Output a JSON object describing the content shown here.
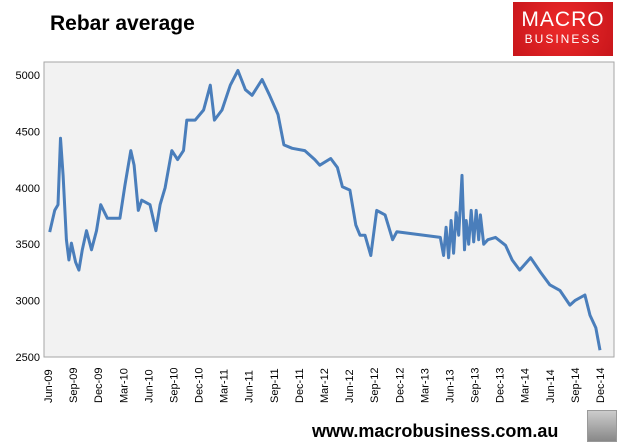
{
  "header": {
    "title": "Rebar average",
    "logo_line1": "MACRO",
    "logo_line2": "BUSINESS"
  },
  "footer": {
    "url": "www.macrobusiness.com.au"
  },
  "chart_data": {
    "type": "line",
    "title": "Rebar average",
    "xlabel": "",
    "ylabel": "",
    "ylim": [
      2500,
      5000
    ],
    "yticks": [
      2500,
      3000,
      3500,
      4000,
      4500,
      5000
    ],
    "x_unit": "months since Jun-09",
    "xlim": [
      0,
      66
    ],
    "xtick_labels": [
      "Jun-09",
      "Sep-09",
      "Dec-09",
      "Mar-10",
      "Jun-10",
      "Sep-10",
      "Dec-10",
      "Mar-11",
      "Jun-11",
      "Sep-11",
      "Dec-11",
      "Mar-12",
      "Jun-12",
      "Sep-12",
      "Dec-12",
      "Mar-13",
      "Jun-13",
      "Sep-13",
      "Dec-13",
      "Mar-14",
      "Jun-14",
      "Sep-14",
      "Dec-14"
    ],
    "grid": false,
    "color": "#4a7ebb",
    "series": [
      {
        "name": "Rebar average",
        "points": [
          [
            0.2,
            3607
          ],
          [
            0.8,
            3800
          ],
          [
            1.2,
            3850
          ],
          [
            1.5,
            4440
          ],
          [
            1.8,
            4110
          ],
          [
            2.2,
            3540
          ],
          [
            2.5,
            3360
          ],
          [
            2.8,
            3510
          ],
          [
            3.3,
            3340
          ],
          [
            3.7,
            3270
          ],
          [
            4.1,
            3450
          ],
          [
            4.6,
            3620
          ],
          [
            5.2,
            3450
          ],
          [
            5.8,
            3620
          ],
          [
            6.3,
            3850
          ],
          [
            7.1,
            3730
          ],
          [
            8.6,
            3730
          ],
          [
            9.2,
            4020
          ],
          [
            9.9,
            4330
          ],
          [
            10.3,
            4200
          ],
          [
            10.8,
            3800
          ],
          [
            11.2,
            3890
          ],
          [
            12.2,
            3850
          ],
          [
            12.9,
            3620
          ],
          [
            13.4,
            3850
          ],
          [
            14.0,
            4000
          ],
          [
            14.8,
            4330
          ],
          [
            15.5,
            4250
          ],
          [
            16.2,
            4330
          ],
          [
            16.6,
            4600
          ],
          [
            17.6,
            4600
          ],
          [
            18.6,
            4690
          ],
          [
            19.4,
            4910
          ],
          [
            19.9,
            4600
          ],
          [
            20.8,
            4690
          ],
          [
            21.8,
            4910
          ],
          [
            22.7,
            5040
          ],
          [
            23.6,
            4870
          ],
          [
            24.4,
            4820
          ],
          [
            25.6,
            4960
          ],
          [
            26.5,
            4820
          ],
          [
            27.5,
            4650
          ],
          [
            28.2,
            4380
          ],
          [
            29.2,
            4350
          ],
          [
            30.7,
            4330
          ],
          [
            31.9,
            4250
          ],
          [
            32.5,
            4200
          ],
          [
            33.8,
            4260
          ],
          [
            34.6,
            4180
          ],
          [
            35.2,
            4010
          ],
          [
            36.1,
            3980
          ],
          [
            36.8,
            3670
          ],
          [
            37.3,
            3580
          ],
          [
            37.9,
            3580
          ],
          [
            38.6,
            3400
          ],
          [
            39.3,
            3800
          ],
          [
            40.3,
            3760
          ],
          [
            41.2,
            3540
          ],
          [
            41.7,
            3610
          ],
          [
            46.9,
            3560
          ],
          [
            47.3,
            3400
          ],
          [
            47.6,
            3650
          ],
          [
            47.9,
            3380
          ],
          [
            48.2,
            3710
          ],
          [
            48.5,
            3420
          ],
          [
            48.8,
            3780
          ],
          [
            49.1,
            3580
          ],
          [
            49.5,
            4110
          ],
          [
            49.8,
            3450
          ],
          [
            50.0,
            3710
          ],
          [
            50.3,
            3500
          ],
          [
            50.6,
            3800
          ],
          [
            50.9,
            3520
          ],
          [
            51.2,
            3800
          ],
          [
            51.5,
            3540
          ],
          [
            51.7,
            3760
          ],
          [
            52.1,
            3500
          ],
          [
            52.6,
            3540
          ],
          [
            53.5,
            3560
          ],
          [
            54.7,
            3490
          ],
          [
            55.5,
            3360
          ],
          [
            56.4,
            3270
          ],
          [
            57.7,
            3380
          ],
          [
            58.9,
            3250
          ],
          [
            60.0,
            3140
          ],
          [
            61.2,
            3090
          ],
          [
            62.4,
            2960
          ],
          [
            63.0,
            3000
          ],
          [
            64.2,
            3050
          ],
          [
            64.8,
            2870
          ],
          [
            65.5,
            2760
          ],
          [
            66.0,
            2560
          ]
        ]
      }
    ]
  }
}
